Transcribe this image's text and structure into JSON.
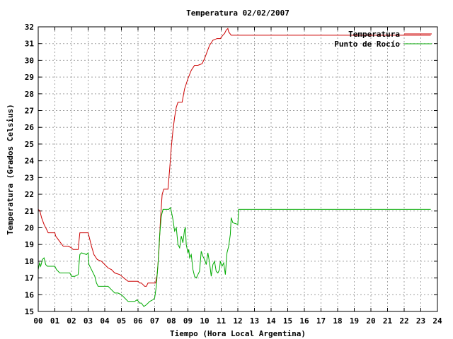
{
  "chart_data": {
    "type": "line",
    "title": "Temperatura 02/02/2007",
    "xlabel": "Tiempo (Hora Local Argentina)",
    "ylabel": "Temperatura (Grados Celsius)",
    "xlim": [
      0,
      24
    ],
    "ylim": [
      15,
      32
    ],
    "x_ticks": [
      "00",
      "01",
      "02",
      "03",
      "04",
      "05",
      "06",
      "07",
      "08",
      "09",
      "10",
      "11",
      "12",
      "13",
      "14",
      "15",
      "16",
      "17",
      "18",
      "19",
      "20",
      "21",
      "22",
      "23",
      "24"
    ],
    "y_ticks": [
      15,
      16,
      17,
      18,
      19,
      20,
      21,
      22,
      23,
      24,
      25,
      26,
      27,
      28,
      29,
      30,
      31,
      32
    ],
    "grid": true,
    "legend_position": "top-right",
    "series": [
      {
        "name": "Temperatura",
        "color": "#cc0000",
        "points": [
          [
            0.0,
            21.1
          ],
          [
            0.1,
            21.0
          ],
          [
            0.2,
            20.6
          ],
          [
            0.35,
            20.2
          ],
          [
            0.5,
            19.9
          ],
          [
            0.6,
            19.7
          ],
          [
            0.8,
            19.7
          ],
          [
            1.0,
            19.7
          ],
          [
            1.05,
            19.5
          ],
          [
            1.2,
            19.3
          ],
          [
            1.35,
            19.1
          ],
          [
            1.5,
            18.9
          ],
          [
            1.8,
            18.9
          ],
          [
            2.0,
            18.8
          ],
          [
            2.1,
            18.7
          ],
          [
            2.4,
            18.7
          ],
          [
            2.5,
            19.7
          ],
          [
            3.0,
            19.7
          ],
          [
            3.05,
            19.5
          ],
          [
            3.2,
            18.9
          ],
          [
            3.35,
            18.4
          ],
          [
            3.55,
            18.1
          ],
          [
            3.8,
            18.0
          ],
          [
            4.0,
            17.8
          ],
          [
            4.2,
            17.6
          ],
          [
            4.4,
            17.5
          ],
          [
            4.6,
            17.3
          ],
          [
            4.9,
            17.2
          ],
          [
            5.15,
            17.0
          ],
          [
            5.4,
            16.8
          ],
          [
            5.8,
            16.8
          ],
          [
            6.0,
            16.8
          ],
          [
            6.1,
            16.7
          ],
          [
            6.2,
            16.7
          ],
          [
            6.4,
            16.5
          ],
          [
            6.5,
            16.5
          ],
          [
            6.6,
            16.7
          ],
          [
            6.9,
            16.7
          ],
          [
            7.05,
            16.7
          ],
          [
            7.15,
            17.2
          ],
          [
            7.25,
            18.5
          ],
          [
            7.35,
            20.5
          ],
          [
            7.45,
            22.0
          ],
          [
            7.55,
            22.3
          ],
          [
            7.8,
            22.3
          ],
          [
            7.9,
            23.5
          ],
          [
            8.0,
            24.8
          ],
          [
            8.1,
            25.8
          ],
          [
            8.2,
            26.6
          ],
          [
            8.3,
            27.2
          ],
          [
            8.4,
            27.5
          ],
          [
            8.65,
            27.5
          ],
          [
            8.8,
            28.3
          ],
          [
            9.0,
            28.9
          ],
          [
            9.2,
            29.4
          ],
          [
            9.4,
            29.7
          ],
          [
            9.6,
            29.7
          ],
          [
            9.85,
            29.8
          ],
          [
            10.0,
            30.1
          ],
          [
            10.15,
            30.5
          ],
          [
            10.3,
            30.9
          ],
          [
            10.5,
            31.2
          ],
          [
            10.75,
            31.3
          ],
          [
            10.95,
            31.3
          ],
          [
            11.1,
            31.5
          ],
          [
            11.2,
            31.6
          ],
          [
            11.3,
            31.8
          ],
          [
            11.4,
            31.9
          ],
          [
            11.45,
            31.7
          ],
          [
            11.6,
            31.5
          ],
          [
            12.0,
            31.5
          ],
          [
            14.0,
            31.5
          ],
          [
            16.0,
            31.5
          ],
          [
            18.0,
            31.5
          ],
          [
            20.0,
            31.5
          ],
          [
            22.0,
            31.5
          ],
          [
            23.3,
            31.5
          ],
          [
            23.6,
            31.5
          ]
        ]
      },
      {
        "name": "Punto de Rocío",
        "color": "#00aa00",
        "points": [
          [
            0.0,
            17.5
          ],
          [
            0.08,
            17.9
          ],
          [
            0.15,
            17.7
          ],
          [
            0.25,
            18.1
          ],
          [
            0.35,
            18.2
          ],
          [
            0.45,
            17.8
          ],
          [
            0.55,
            17.7
          ],
          [
            1.0,
            17.7
          ],
          [
            1.1,
            17.5
          ],
          [
            1.3,
            17.3
          ],
          [
            1.6,
            17.3
          ],
          [
            1.9,
            17.3
          ],
          [
            2.0,
            17.1
          ],
          [
            2.2,
            17.1
          ],
          [
            2.4,
            17.2
          ],
          [
            2.5,
            18.4
          ],
          [
            2.6,
            18.5
          ],
          [
            2.9,
            18.4
          ],
          [
            3.0,
            18.5
          ],
          [
            3.05,
            17.8
          ],
          [
            3.2,
            17.5
          ],
          [
            3.4,
            17.1
          ],
          [
            3.5,
            16.7
          ],
          [
            3.6,
            16.5
          ],
          [
            4.0,
            16.5
          ],
          [
            4.2,
            16.5
          ],
          [
            4.4,
            16.3
          ],
          [
            4.6,
            16.1
          ],
          [
            4.8,
            16.1
          ],
          [
            5.0,
            16.0
          ],
          [
            5.2,
            15.8
          ],
          [
            5.4,
            15.6
          ],
          [
            5.6,
            15.6
          ],
          [
            5.8,
            15.6
          ],
          [
            5.95,
            15.7
          ],
          [
            6.1,
            15.5
          ],
          [
            6.2,
            15.5
          ],
          [
            6.35,
            15.3
          ],
          [
            6.5,
            15.4
          ],
          [
            6.7,
            15.6
          ],
          [
            6.9,
            15.7
          ],
          [
            7.0,
            15.8
          ],
          [
            7.1,
            16.5
          ],
          [
            7.2,
            17.8
          ],
          [
            7.3,
            19.5
          ],
          [
            7.4,
            20.7
          ],
          [
            7.5,
            21.1
          ],
          [
            7.7,
            21.1
          ],
          [
            7.85,
            21.1
          ],
          [
            7.95,
            21.2
          ],
          [
            8.0,
            21.0
          ],
          [
            8.1,
            20.5
          ],
          [
            8.2,
            19.8
          ],
          [
            8.3,
            20.0
          ],
          [
            8.4,
            19.0
          ],
          [
            8.5,
            18.8
          ],
          [
            8.6,
            19.5
          ],
          [
            8.7,
            19.1
          ],
          [
            8.8,
            19.9
          ],
          [
            8.85,
            20.0
          ],
          [
            8.9,
            19.0
          ],
          [
            9.0,
            18.5
          ],
          [
            9.05,
            18.7
          ],
          [
            9.1,
            18.2
          ],
          [
            9.2,
            18.4
          ],
          [
            9.3,
            17.5
          ],
          [
            9.4,
            17.1
          ],
          [
            9.5,
            17.0
          ],
          [
            9.6,
            17.2
          ],
          [
            9.7,
            17.4
          ],
          [
            9.8,
            18.6
          ],
          [
            9.9,
            18.3
          ],
          [
            10.0,
            18.1
          ],
          [
            10.1,
            17.8
          ],
          [
            10.2,
            18.5
          ],
          [
            10.3,
            17.9
          ],
          [
            10.4,
            17.1
          ],
          [
            10.5,
            17.8
          ],
          [
            10.6,
            18.0
          ],
          [
            10.7,
            17.4
          ],
          [
            10.8,
            17.3
          ],
          [
            10.9,
            17.5
          ],
          [
            10.95,
            18.0
          ],
          [
            11.05,
            17.7
          ],
          [
            11.15,
            17.9
          ],
          [
            11.25,
            17.2
          ],
          [
            11.35,
            18.5
          ],
          [
            11.45,
            18.9
          ],
          [
            11.55,
            19.6
          ],
          [
            11.6,
            20.6
          ],
          [
            11.7,
            20.3
          ],
          [
            12.0,
            20.2
          ],
          [
            12.05,
            21.1
          ],
          [
            13.0,
            21.1
          ],
          [
            15.0,
            21.1
          ],
          [
            17.0,
            21.1
          ],
          [
            19.0,
            21.1
          ],
          [
            21.0,
            21.1
          ],
          [
            23.0,
            21.1
          ],
          [
            23.6,
            21.1
          ]
        ]
      }
    ]
  }
}
